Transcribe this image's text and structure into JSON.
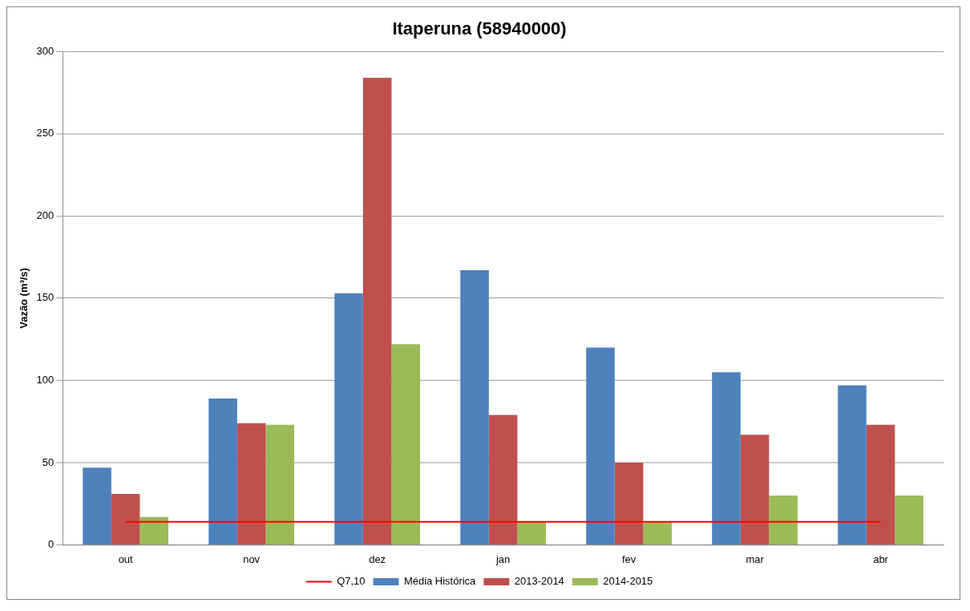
{
  "chart_data": {
    "type": "bar",
    "title": "Itaperuna (58940000)",
    "ylabel": "Vazão (m³/s)",
    "categories": [
      "out",
      "nov",
      "dez",
      "jan",
      "fev",
      "mar",
      "abr"
    ],
    "series": [
      {
        "name": "Média Histórica",
        "color": "#4f81bd",
        "values": [
          47,
          89,
          153,
          167,
          120,
          105,
          97
        ]
      },
      {
        "name": "2013-2014",
        "color": "#c0504d",
        "values": [
          31,
          74,
          284,
          79,
          50,
          67,
          73
        ]
      },
      {
        "name": "2014-2015",
        "color": "#9bbb59",
        "values": [
          17,
          73,
          122,
          14,
          14,
          30,
          30
        ]
      },
      {
        "name": "Q7,10",
        "color": "#ff0000",
        "type": "line",
        "marker": "none",
        "line_style": "solid",
        "values": [
          14,
          14,
          14,
          14,
          14,
          14,
          14
        ]
      }
    ],
    "ylim": [
      0,
      300
    ],
    "yticks": [
      0,
      50,
      100,
      150,
      200,
      250,
      300
    ],
    "grid": "y",
    "legend": "bottom"
  }
}
